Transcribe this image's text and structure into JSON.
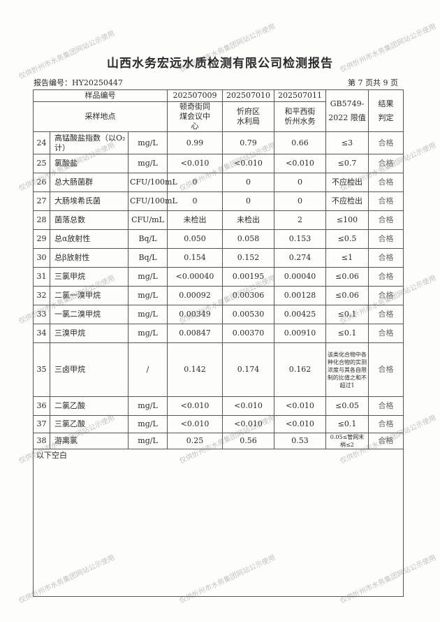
{
  "title": "山西水务宏远水质检测有限公司检测报告",
  "report_no": "报告编号：HY20250447",
  "page_info": "第 7 页共 9 页",
  "header": {
    "sample_no_label": "样品编号",
    "location_label": "采样地点",
    "samples": [
      {
        "no": "202507009",
        "location": "顿奇街同煤会议中心"
      },
      {
        "no": "202507010",
        "location": "忻府区水利局"
      },
      {
        "no": "202507011",
        "location": "和平西街忻州水务"
      }
    ],
    "limit_label": "GB5749-2022 限值",
    "result_label": "结果判定"
  },
  "rows": [
    {
      "n": "24",
      "name": "高锰酸盐指数（以O₂计）",
      "unit": "mg/L",
      "v": [
        "0.99",
        "0.79",
        "0.66"
      ],
      "limit": "≤3",
      "result": "合格"
    },
    {
      "n": "25",
      "name": "氯酸盐",
      "unit": "mg/L",
      "v": [
        "<0.010",
        "<0.010",
        "<0.010"
      ],
      "limit": "≤0.7",
      "result": "合格"
    },
    {
      "n": "26",
      "name": "总大肠菌群",
      "unit": "CFU/100mL",
      "v": [
        "0",
        "0",
        "0"
      ],
      "limit": "不应检出",
      "result": "合格"
    },
    {
      "n": "27",
      "name": "大肠埃希氏菌",
      "unit": "CFU/100mL",
      "v": [
        "0",
        "0",
        "0"
      ],
      "limit": "不应检出",
      "result": "合格"
    },
    {
      "n": "28",
      "name": "菌落总数",
      "unit": "CFU/mL",
      "v": [
        "未检出",
        "未检出",
        "2"
      ],
      "limit": "≤100",
      "result": "合格"
    },
    {
      "n": "29",
      "name": "总α放射性",
      "unit": "Bq/L",
      "v": [
        "0.050",
        "0.058",
        "0.153"
      ],
      "limit": "≤0.5",
      "result": "合格"
    },
    {
      "n": "30",
      "name": "总β放射性",
      "unit": "Bq/L",
      "v": [
        "0.154",
        "0.152",
        "0.274"
      ],
      "limit": "≤1",
      "result": "合格"
    },
    {
      "n": "31",
      "name": "三氯甲烷",
      "unit": "mg/L",
      "v": [
        "<0.00040",
        "0.00195",
        "0.00040"
      ],
      "limit": "≤0.06",
      "result": "合格"
    },
    {
      "n": "32",
      "name": "二氯一溴甲烷",
      "unit": "mg/L",
      "v": [
        "0.00092",
        "0.00306",
        "0.00128"
      ],
      "limit": "≤0.06",
      "result": "合格"
    },
    {
      "n": "33",
      "name": "一氯二溴甲烷",
      "unit": "mg/L",
      "v": [
        "0.00349",
        "0.00530",
        "0.00425"
      ],
      "limit": "≤0.1",
      "result": "合格"
    },
    {
      "n": "34",
      "name": "三溴甲烷",
      "unit": "mg/L",
      "v": [
        "0.00847",
        "0.00370",
        "0.00910"
      ],
      "limit": "≤0.1",
      "result": "合格"
    },
    {
      "n": "35",
      "name": "三卤甲烷",
      "unit": "/",
      "v": [
        "0.142",
        "0.174",
        "0.162"
      ],
      "limit": "该类化合物中各种化合物的实测浓度与其各自限制的比值之和不超过1",
      "result": "合格"
    },
    {
      "n": "36",
      "name": "二氯乙酸",
      "unit": "mg/L",
      "v": [
        "<0.010",
        "<0.010",
        "<0.010"
      ],
      "limit": "≤0.05",
      "result": "合格"
    },
    {
      "n": "37",
      "name": "三氯乙酸",
      "unit": "mg/L",
      "v": [
        "<0.010",
        "<0.010",
        "<0.010"
      ],
      "limit": "≤0.1",
      "result": "合格"
    },
    {
      "n": "38",
      "name": "游离氯",
      "unit": "mg/L",
      "v": [
        "0.25",
        "0.56",
        "0.53"
      ],
      "limit": "0.05≤管网末梢≤2",
      "result": "合格"
    }
  ],
  "footer_note": "以下空白",
  "watermark": "仅供忻州市水务集团网站公示使用"
}
